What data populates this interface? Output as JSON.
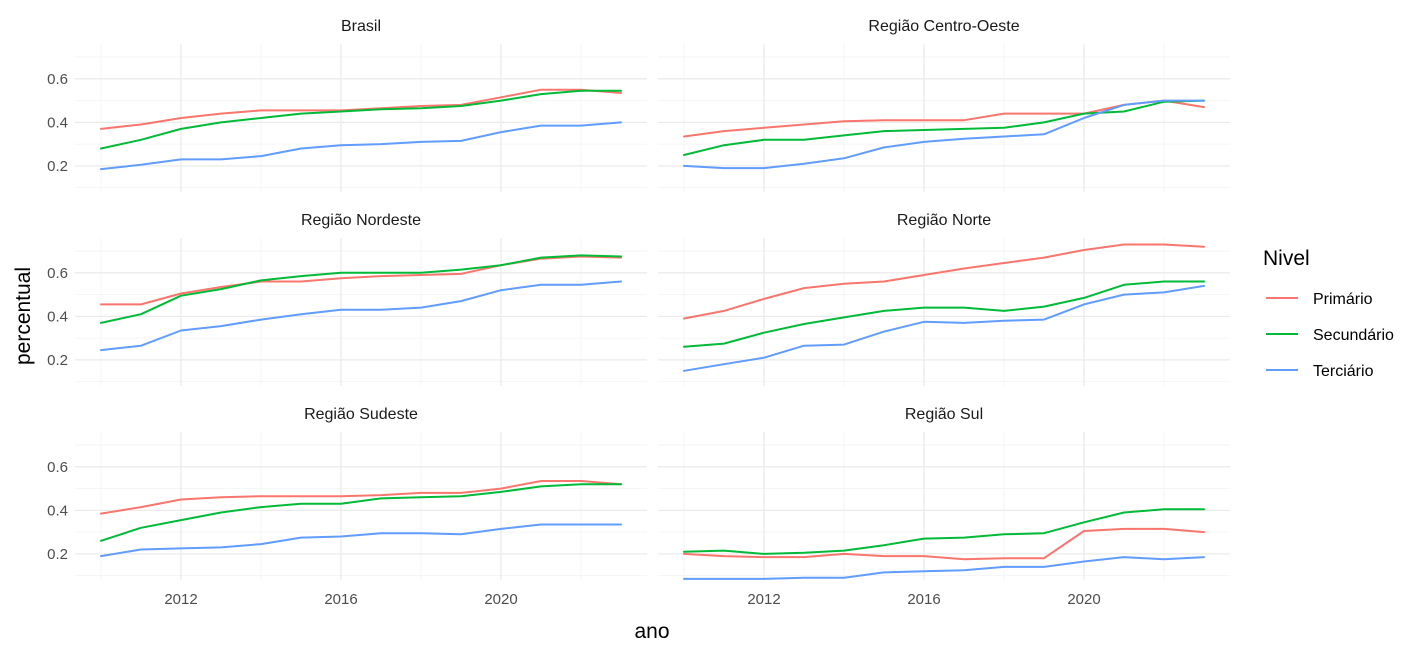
{
  "chart_data": {
    "type": "line",
    "xlabel": "ano",
    "ylabel": "percentual",
    "x": [
      2010,
      2011,
      2012,
      2013,
      2014,
      2015,
      2016,
      2017,
      2018,
      2019,
      2020,
      2021,
      2022,
      2023
    ],
    "xticks": [
      2012,
      2016,
      2020
    ],
    "xlim": [
      2009.35,
      2023.65
    ],
    "yticks": [
      0.2,
      0.4,
      0.6
    ],
    "ylim": [
      0.08,
      0.76
    ],
    "grid": true,
    "legend": {
      "title": "Nivel",
      "position": "right",
      "entries": [
        {
          "label": "Primário",
          "color": "#F8766D"
        },
        {
          "label": "Secundário",
          "color": "#00BA38"
        },
        {
          "label": "Terciário",
          "color": "#619CFF"
        }
      ]
    },
    "panels": [
      {
        "title": "Brasil",
        "series": [
          {
            "name": "Primário",
            "values": [
              0.37,
              0.39,
              0.42,
              0.44,
              0.455,
              0.455,
              0.455,
              0.465,
              0.475,
              0.48,
              0.515,
              0.55,
              0.55,
              0.535
            ]
          },
          {
            "name": "Secundário",
            "values": [
              0.28,
              0.32,
              0.37,
              0.4,
              0.42,
              0.44,
              0.45,
              0.46,
              0.465,
              0.475,
              0.5,
              0.53,
              0.545,
              0.545
            ]
          },
          {
            "name": "Terciário",
            "values": [
              0.185,
              0.205,
              0.23,
              0.23,
              0.245,
              0.28,
              0.295,
              0.3,
              0.31,
              0.315,
              0.355,
              0.385,
              0.385,
              0.4
            ]
          }
        ]
      },
      {
        "title": "Região Centro-Oeste",
        "series": [
          {
            "name": "Primário",
            "values": [
              0.335,
              0.36,
              0.375,
              0.39,
              0.405,
              0.41,
              0.41,
              0.41,
              0.44,
              0.44,
              0.44,
              0.48,
              0.5,
              0.47
            ]
          },
          {
            "name": "Secundário",
            "values": [
              0.25,
              0.295,
              0.32,
              0.32,
              0.34,
              0.36,
              0.365,
              0.37,
              0.375,
              0.4,
              0.44,
              0.45,
              0.495,
              0.5
            ]
          },
          {
            "name": "Terciário",
            "values": [
              0.2,
              0.19,
              0.19,
              0.21,
              0.235,
              0.285,
              0.31,
              0.325,
              0.335,
              0.345,
              0.42,
              0.48,
              0.5,
              0.5
            ]
          }
        ]
      },
      {
        "title": "Região Nordeste",
        "series": [
          {
            "name": "Primário",
            "values": [
              0.455,
              0.455,
              0.505,
              0.535,
              0.56,
              0.56,
              0.575,
              0.585,
              0.59,
              0.595,
              0.635,
              0.665,
              0.675,
              0.67
            ]
          },
          {
            "name": "Secundário",
            "values": [
              0.37,
              0.41,
              0.495,
              0.525,
              0.565,
              0.585,
              0.6,
              0.6,
              0.6,
              0.615,
              0.635,
              0.67,
              0.68,
              0.675
            ]
          },
          {
            "name": "Terciário",
            "values": [
              0.245,
              0.265,
              0.335,
              0.355,
              0.385,
              0.41,
              0.43,
              0.43,
              0.44,
              0.47,
              0.52,
              0.545,
              0.545,
              0.56
            ]
          }
        ]
      },
      {
        "title": "Região Norte",
        "series": [
          {
            "name": "Primário",
            "values": [
              0.39,
              0.425,
              0.48,
              0.53,
              0.55,
              0.56,
              0.59,
              0.62,
              0.645,
              0.67,
              0.705,
              0.73,
              0.73,
              0.72
            ]
          },
          {
            "name": "Secundário",
            "values": [
              0.26,
              0.275,
              0.325,
              0.365,
              0.395,
              0.425,
              0.44,
              0.44,
              0.425,
              0.445,
              0.485,
              0.545,
              0.56,
              0.56
            ]
          },
          {
            "name": "Terciário",
            "values": [
              0.15,
              0.18,
              0.21,
              0.265,
              0.27,
              0.33,
              0.375,
              0.37,
              0.38,
              0.385,
              0.455,
              0.5,
              0.51,
              0.54
            ]
          }
        ]
      },
      {
        "title": "Região Sudeste",
        "series": [
          {
            "name": "Primário",
            "values": [
              0.385,
              0.415,
              0.45,
              0.46,
              0.465,
              0.465,
              0.465,
              0.47,
              0.48,
              0.48,
              0.5,
              0.535,
              0.535,
              0.52
            ]
          },
          {
            "name": "Secundário",
            "values": [
              0.26,
              0.32,
              0.355,
              0.39,
              0.415,
              0.43,
              0.43,
              0.455,
              0.46,
              0.465,
              0.485,
              0.51,
              0.52,
              0.52
            ]
          },
          {
            "name": "Terciário",
            "values": [
              0.19,
              0.22,
              0.225,
              0.23,
              0.245,
              0.275,
              0.28,
              0.295,
              0.295,
              0.29,
              0.315,
              0.335,
              0.335,
              0.335
            ]
          }
        ]
      },
      {
        "title": "Região Sul",
        "series": [
          {
            "name": "Primário",
            "values": [
              0.2,
              0.19,
              0.185,
              0.185,
              0.2,
              0.19,
              0.19,
              0.175,
              0.18,
              0.18,
              0.305,
              0.315,
              0.315,
              0.3
            ]
          },
          {
            "name": "Secundário",
            "values": [
              0.21,
              0.215,
              0.2,
              0.205,
              0.215,
              0.24,
              0.27,
              0.275,
              0.29,
              0.295,
              0.345,
              0.39,
              0.405,
              0.405
            ]
          },
          {
            "name": "Terciário",
            "values": [
              0.085,
              0.085,
              0.085,
              0.09,
              0.09,
              0.115,
              0.12,
              0.125,
              0.14,
              0.14,
              0.165,
              0.185,
              0.175,
              0.185
            ]
          }
        ]
      }
    ]
  }
}
